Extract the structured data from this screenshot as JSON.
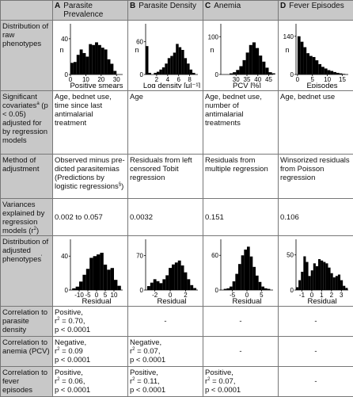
{
  "columns": [
    {
      "letter": "A",
      "title": "Parasite Prevalence"
    },
    {
      "letter": "B",
      "title": "Parasite Density"
    },
    {
      "letter": "C",
      "title": "Anemia"
    },
    {
      "letter": "D",
      "title": "Fever Episodes"
    }
  ],
  "row_labels": {
    "raw": "Distribution of raw phenotypes",
    "covariates_a": "Significant covariates",
    "covariates_sup": "a",
    "covariates_b": "(p < 0.05) adjusted for by regression models",
    "method": "Method of adjustment",
    "variance_a": "Variances explained by regression models (r",
    "variance_sup": "2",
    "variance_b": ")",
    "adjusted": "Distribution of adjusted phenotypes",
    "adjusted_sup": "'",
    "corr_density": "Correlation to parasite density",
    "corr_anemia": "Correlation to anemia (PCV)",
    "corr_fever": "Correlation to fever episodes"
  },
  "covariates": [
    "Age, bednet use, time since last antimalarial treatment",
    "Age",
    "Age, bednet use, number of antimalarial treatments",
    "Age, bednet use"
  ],
  "method": {
    "A_main": "Observed minus pre-dicted parasitemias (Predictions by logistic regressions",
    "A_sup": "§",
    "A_end": ")",
    "B": "Residuals from left censored Tobit regression",
    "C": "Residuals from multiple regression",
    "D": "Winsorized residuals from Poisson regression"
  },
  "variance": [
    "0.002 to 0.057",
    "0.0032",
    "0.151",
    "0.106"
  ],
  "dash": "-",
  "corr_density": {
    "A": {
      "dir": "Positive,",
      "r_pre": "r",
      "r_sup": "2",
      "r_val": " = 0.70,",
      "p": "p < 0.0001"
    }
  },
  "corr_anemia": {
    "A": {
      "dir": "Negative,",
      "r_pre": "r",
      "r_sup": "2",
      "r_val": " = 0.09",
      "p": "p < 0.0001"
    },
    "B": {
      "dir": "Negative,",
      "r_pre": "r",
      "r_sup": "2",
      "r_val": " = 0.07,",
      "p": "p < 0.0001"
    }
  },
  "corr_fever": {
    "A": {
      "dir": "Positive,",
      "r_pre": "r",
      "r_sup": "2",
      "r_val": " = 0.06,",
      "p": "p < 0.0001"
    },
    "B": {
      "dir": "Positive,",
      "r_pre": "r",
      "r_sup": "2",
      "r_val": " = 0.11,",
      "p": "p < 0.0001"
    },
    "C": {
      "dir": "Positive,",
      "r_pre": "r",
      "r_sup": "2",
      "r_val": " = 0.07,",
      "p": "p < 0.0001"
    }
  },
  "chart_data": [
    {
      "id": "raw-A",
      "type": "bar",
      "ylabel": "n",
      "xlabel": "Positive smears",
      "yticks": [
        0,
        40
      ],
      "ylim": [
        0,
        55
      ],
      "xticks": [
        0,
        10,
        20,
        30
      ],
      "xlim": [
        0,
        34
      ],
      "bin_start": 0,
      "bin_width": 2,
      "values": [
        13,
        14,
        22,
        28,
        24,
        20,
        34,
        33,
        36,
        33,
        30,
        28,
        17,
        12,
        4
      ]
    },
    {
      "id": "raw-B",
      "type": "bar",
      "ylabel": "n",
      "xlabel": "Log density [μl⁻¹]",
      "yticks": [
        0,
        60
      ],
      "ylim": [
        0,
        90
      ],
      "xticks": [
        2,
        4,
        6,
        8
      ],
      "xlim": [
        0,
        9.5
      ],
      "bin_start": 0,
      "bin_width": 0.5,
      "values": [
        52,
        3,
        0,
        3,
        5,
        9,
        13,
        20,
        30,
        34,
        40,
        56,
        50,
        45,
        30,
        20,
        9,
        3
      ]
    },
    {
      "id": "raw-C",
      "type": "bar",
      "ylabel": "n",
      "xlabel": "PCV [%]",
      "yticks": [
        0,
        100
      ],
      "ylim": [
        0,
        130
      ],
      "xticks": [
        30,
        35,
        40,
        45
      ],
      "xlim": [
        23,
        47
      ],
      "bin_start": 27,
      "bin_width": 1.5,
      "values": [
        3,
        6,
        12,
        22,
        38,
        58,
        78,
        85,
        70,
        50,
        34,
        18,
        6,
        3
      ]
    },
    {
      "id": "raw-D",
      "type": "bar",
      "ylabel": "n",
      "xlabel": "Episodes",
      "yticks": [
        0,
        140
      ],
      "ylim": [
        0,
        180
      ],
      "xticks": [
        0,
        5,
        10,
        15
      ],
      "xlim": [
        -0.5,
        17
      ],
      "bin_start": 0,
      "bin_width": 1,
      "values": [
        140,
        120,
        100,
        78,
        68,
        64,
        52,
        38,
        28,
        22,
        16,
        13,
        9,
        6,
        4,
        2
      ]
    },
    {
      "id": "adj-A",
      "type": "bar",
      "ylabel": "",
      "xlabel": "Residual",
      "yticks": [
        0,
        40
      ],
      "ylim": [
        0,
        58
      ],
      "xticks": [
        -10,
        -5,
        0,
        5,
        10
      ],
      "xlim": [
        -15,
        15
      ],
      "bin_start": -14,
      "bin_width": 2,
      "values": [
        2,
        4,
        10,
        18,
        25,
        38,
        40,
        42,
        44,
        30,
        24,
        26,
        12,
        5
      ]
    },
    {
      "id": "adj-B",
      "type": "bar",
      "ylabel": "",
      "xlabel": "Residual",
      "yticks": [
        0,
        70
      ],
      "ylim": [
        0,
        100
      ],
      "xticks": [
        -2,
        0,
        2
      ],
      "xlim": [
        -3.2,
        3.6
      ],
      "bin_start": -3,
      "bin_width": 0.4,
      "values": [
        8,
        15,
        22,
        18,
        14,
        22,
        30,
        45,
        52,
        56,
        60,
        50,
        36,
        22,
        10,
        4
      ]
    },
    {
      "id": "adj-C",
      "type": "bar",
      "ylabel": "",
      "xlabel": "Residual",
      "yticks": [
        0,
        60
      ],
      "ylim": [
        0,
        85
      ],
      "xticks": [
        -5,
        0,
        5
      ],
      "xlim": [
        -9,
        9
      ],
      "bin_start": -8,
      "bin_width": 1,
      "values": [
        2,
        3,
        6,
        15,
        28,
        45,
        60,
        70,
        75,
        58,
        40,
        25,
        14,
        6,
        3,
        2
      ]
    },
    {
      "id": "adj-D",
      "type": "bar",
      "ylabel": "",
      "xlabel": "Residual",
      "yticks": [
        0,
        50
      ],
      "ylim": [
        0,
        70
      ],
      "xticks": [
        -1,
        0,
        1,
        2,
        3
      ],
      "xlim": [
        -1.6,
        3.7
      ],
      "bin_start": -1.6,
      "bin_width": 0.25,
      "values": [
        4,
        14,
        26,
        48,
        40,
        20,
        28,
        38,
        34,
        44,
        42,
        40,
        38,
        32,
        24,
        18,
        20,
        22,
        14,
        6,
        3
      ]
    }
  ]
}
